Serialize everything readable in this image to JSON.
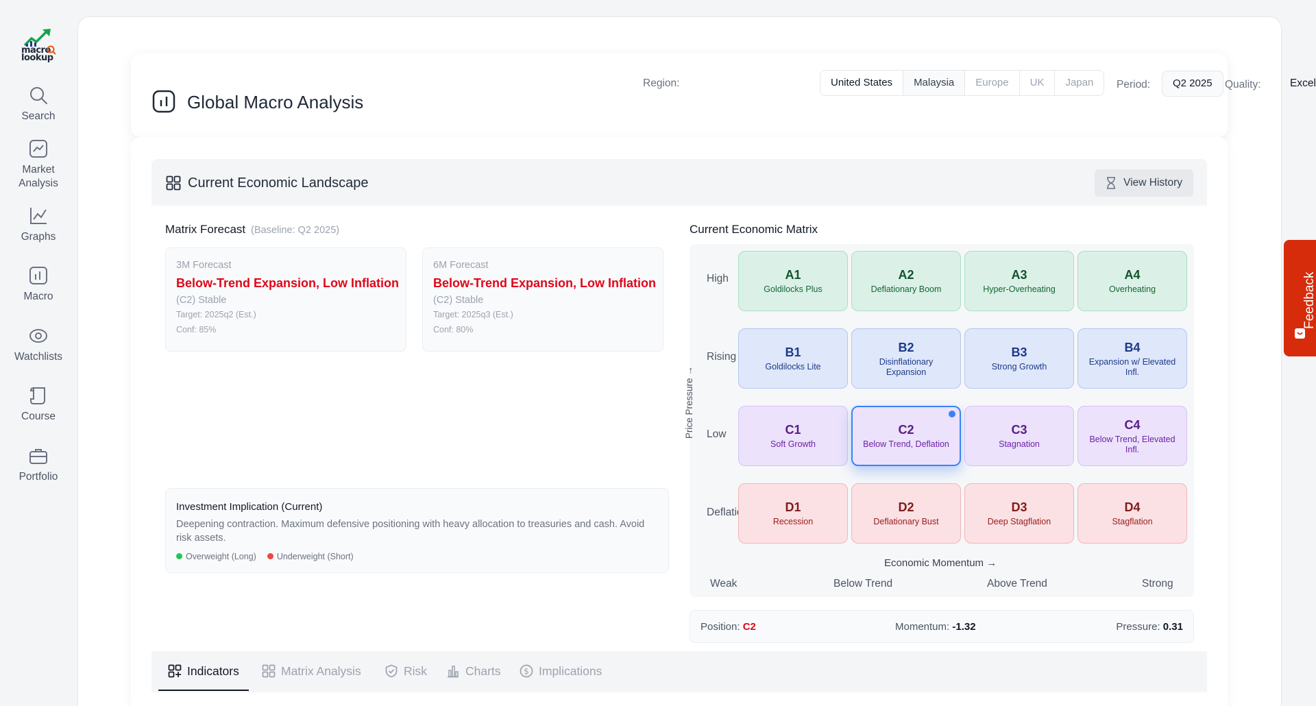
{
  "sidebar": {
    "logo_text_line1": "macro",
    "logo_text_line2": "lookup",
    "items": [
      {
        "label": "Search",
        "icon": "search-icon"
      },
      {
        "label": "Market Analysis",
        "icon": "chart-line-icon"
      },
      {
        "label": "Graphs",
        "icon": "graph-icon"
      },
      {
        "label": "Macro",
        "icon": "bar-chart-icon"
      },
      {
        "label": "Watchlists",
        "icon": "eye-icon"
      },
      {
        "label": "Course",
        "icon": "scroll-icon"
      },
      {
        "label": "Portfolio",
        "icon": "briefcase-icon"
      }
    ]
  },
  "header": {
    "title": "Global Macro Analysis",
    "region_label": "Region:",
    "regions": [
      "United States",
      "Malaysia",
      "Europe",
      "UK",
      "Japan"
    ],
    "region_selected": "United States",
    "period_label": "Period:",
    "period_value": "Q2 2025",
    "quality_label": "Quality:",
    "quality_value": "Excellent"
  },
  "landscape": {
    "title": "Current Economic Landscape",
    "view_history_label": "View History"
  },
  "forecast": {
    "title": "Matrix Forecast",
    "baseline": "(Baseline: Q2 2025)",
    "cards": [
      {
        "label": "3M Forecast",
        "title": "Below-Trend Expansion, Low Inflation",
        "status": "(C2) Stable",
        "target": "Target: 2025q2 (Est.)",
        "conf": "Conf: 85%"
      },
      {
        "label": "6M Forecast",
        "title": "Below-Trend Expansion, Low Inflation",
        "status": "(C2) Stable",
        "target": "Target: 2025q3 (Est.)",
        "conf": "Conf: 80%"
      }
    ]
  },
  "implication": {
    "title": "Investment Implication (Current)",
    "text": "Deepening contraction. Maximum defensive positioning with heavy allocation to treasuries and cash. Avoid risk assets.",
    "legend_long": "Overweight (Long)",
    "legend_short": "Underweight (Short)",
    "color_long": "#22c55e",
    "color_short": "#ef4444"
  },
  "matrix": {
    "title": "Current Economic Matrix",
    "row_labels": [
      "High",
      "Rising",
      "Low",
      "Deflation"
    ],
    "y_axis": "Price Pressure →",
    "x_axis": "Economic Momentum →",
    "x_ticks": [
      "Weak",
      "Below Trend",
      "Above Trend",
      "Strong"
    ],
    "current": "C2",
    "rows": [
      [
        {
          "code": "A1",
          "name": "Goldilocks Plus"
        },
        {
          "code": "A2",
          "name": "Deflationary Boom"
        },
        {
          "code": "A3",
          "name": "Hyper-Overheating"
        },
        {
          "code": "A4",
          "name": "Overheating"
        }
      ],
      [
        {
          "code": "B1",
          "name": "Goldilocks Lite"
        },
        {
          "code": "B2",
          "name": "Disinflationary Expansion"
        },
        {
          "code": "B3",
          "name": "Strong Growth"
        },
        {
          "code": "B4",
          "name": "Expansion w/ Elevated Infl."
        }
      ],
      [
        {
          "code": "C1",
          "name": "Soft Growth"
        },
        {
          "code": "C2",
          "name": "Below Trend, Deflation"
        },
        {
          "code": "C3",
          "name": "Stagnation"
        },
        {
          "code": "C4",
          "name": "Below Trend, Elevated Infl."
        }
      ],
      [
        {
          "code": "D1",
          "name": "Recession"
        },
        {
          "code": "D2",
          "name": "Deflationary Bust"
        },
        {
          "code": "D3",
          "name": "Deep Stagflation"
        },
        {
          "code": "D4",
          "name": "Stagflation"
        }
      ]
    ]
  },
  "position": {
    "position_label": "Position:",
    "position_value": "C2",
    "momentum_label": "Momentum:",
    "momentum_value": "-1.32",
    "pressure_label": "Pressure:",
    "pressure_value": "0.31"
  },
  "tabs": [
    {
      "label": "Indicators",
      "icon": "grid-plus-icon"
    },
    {
      "label": "Matrix Analysis",
      "icon": "grid-icon"
    },
    {
      "label": "Risk",
      "icon": "shield-icon"
    },
    {
      "label": "Charts",
      "icon": "bar-chart-icon"
    },
    {
      "label": "Implications",
      "icon": "dollar-icon"
    }
  ],
  "feedback_label": "Feedback"
}
